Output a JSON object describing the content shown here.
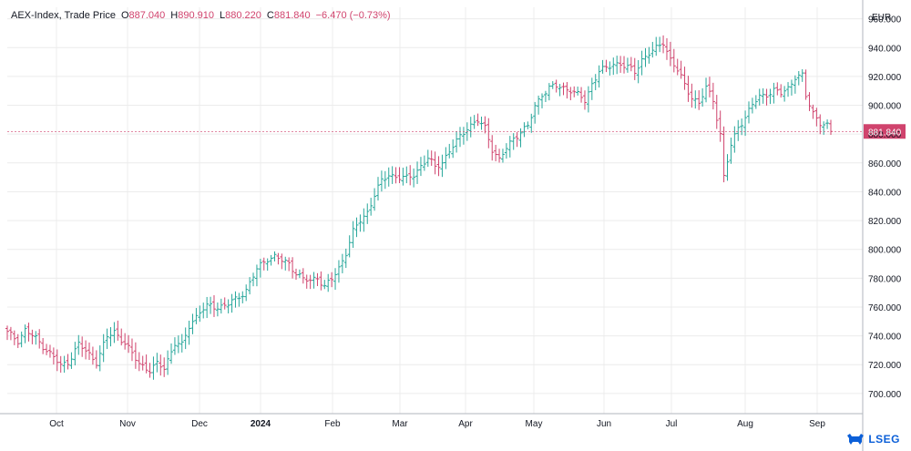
{
  "legend": {
    "symbol": "AEX-Index, Trade Price",
    "open_label": "O",
    "open": "887.040",
    "high_label": "H",
    "high": "890.910",
    "low_label": "L",
    "low": "880.220",
    "close_label": "C",
    "close": "881.840",
    "change": "−6.470 (−0.73%)"
  },
  "currency": "EUR",
  "last_price_label": "881.840",
  "branding": {
    "logo_text": "LSEG",
    "logo_icon": "lseg-bull-icon"
  },
  "colors": {
    "up": "#26a69a",
    "down": "#d0436d",
    "grid": "#ececec",
    "axis": "#131722",
    "last_price_bg": "#d0436d"
  },
  "chart_data": {
    "type": "ohlc",
    "title": "AEX-Index, Trade Price",
    "ylabel": "EUR",
    "ylim": [
      686,
      968
    ],
    "yticks": [
      700,
      720,
      740,
      760,
      780,
      800,
      820,
      840,
      860,
      880,
      900,
      920,
      940,
      960
    ],
    "ytick_labels": [
      "700.000",
      "720.000",
      "740.000",
      "760.000",
      "780.000",
      "800.000",
      "820.000",
      "840.000",
      "860.000",
      "880.000",
      "900.000",
      "920.000",
      "940.000",
      "960.000"
    ],
    "xtick_labels": [
      "Oct",
      "Nov",
      "Dec",
      "2024",
      "Feb",
      "Mar",
      "Apr",
      "May",
      "Jun",
      "Jul",
      "Aug",
      "Sep"
    ],
    "xtick_bold": [
      false,
      false,
      false,
      true,
      false,
      false,
      false,
      false,
      false,
      false,
      false,
      false
    ],
    "grid": true,
    "last_close": 881.84,
    "series": [
      {
        "name": "AEX-Index",
        "approx_close_path": [
          [
            0,
            742
          ],
          [
            3,
            737
          ],
          [
            5,
            744
          ],
          [
            8,
            738
          ],
          [
            10,
            733
          ],
          [
            13,
            725
          ],
          [
            15,
            719
          ],
          [
            17,
            722
          ],
          [
            20,
            734
          ],
          [
            23,
            727
          ],
          [
            25,
            722
          ],
          [
            28,
            739
          ],
          [
            30,
            743
          ],
          [
            33,
            735
          ],
          [
            35,
            727
          ],
          [
            37,
            721
          ],
          [
            40,
            716
          ],
          [
            42,
            720
          ],
          [
            44,
            718
          ],
          [
            47,
            735
          ],
          [
            49,
            733
          ],
          [
            51,
            747
          ],
          [
            54,
            757
          ],
          [
            57,
            761
          ],
          [
            59,
            760
          ],
          [
            62,
            762
          ],
          [
            64,
            765
          ],
          [
            67,
            772
          ],
          [
            70,
            786
          ],
          [
            73,
            794
          ],
          [
            75,
            795
          ],
          [
            77,
            792
          ],
          [
            79,
            790
          ],
          [
            81,
            784
          ],
          [
            83,
            779
          ],
          [
            85,
            778
          ],
          [
            87,
            781
          ],
          [
            89,
            774
          ],
          [
            91,
            779
          ],
          [
            93,
            787
          ],
          [
            95,
            798
          ],
          [
            97,
            812
          ],
          [
            99,
            820
          ],
          [
            101,
            826
          ],
          [
            103,
            838
          ],
          [
            105,
            847
          ],
          [
            107,
            852
          ],
          [
            110,
            850
          ],
          [
            112,
            849
          ],
          [
            114,
            852
          ],
          [
            116,
            858
          ],
          [
            118,
            863
          ],
          [
            120,
            857
          ],
          [
            122,
            861
          ],
          [
            124,
            868
          ],
          [
            127,
            878
          ],
          [
            129,
            885
          ],
          [
            132,
            889
          ],
          [
            134,
            884
          ],
          [
            136,
            870
          ],
          [
            138,
            862
          ],
          [
            140,
            870
          ],
          [
            142,
            877
          ],
          [
            144,
            882
          ],
          [
            146,
            885
          ],
          [
            148,
            899
          ],
          [
            150,
            908
          ],
          [
            152,
            912
          ],
          [
            154,
            913
          ],
          [
            156,
            912
          ],
          [
            158,
            911
          ],
          [
            160,
            907
          ],
          [
            162,
            903
          ],
          [
            164,
            915
          ],
          [
            166,
            924
          ],
          [
            168,
            925
          ],
          [
            170,
            929
          ],
          [
            172,
            929
          ],
          [
            174,
            926
          ],
          [
            176,
            923
          ],
          [
            178,
            932
          ],
          [
            180,
            936
          ],
          [
            182,
            939
          ],
          [
            184,
            944
          ],
          [
            186,
            932
          ],
          [
            188,
            924
          ],
          [
            190,
            914
          ],
          [
            192,
            906
          ],
          [
            194,
            901
          ],
          [
            196,
            912
          ],
          [
            198,
            904
          ],
          [
            200,
            880
          ],
          [
            201,
            850
          ],
          [
            203,
            872
          ],
          [
            205,
            885
          ],
          [
            207,
            892
          ],
          [
            209,
            900
          ],
          [
            211,
            906
          ],
          [
            213,
            908
          ],
          [
            215,
            910
          ],
          [
            217,
            908
          ],
          [
            219,
            912
          ],
          [
            221,
            920
          ],
          [
            223,
            920
          ],
          [
            224,
            906
          ],
          [
            226,
            895
          ],
          [
            228,
            888
          ],
          [
            230,
            885
          ],
          [
            231,
            881.84
          ]
        ]
      }
    ]
  }
}
